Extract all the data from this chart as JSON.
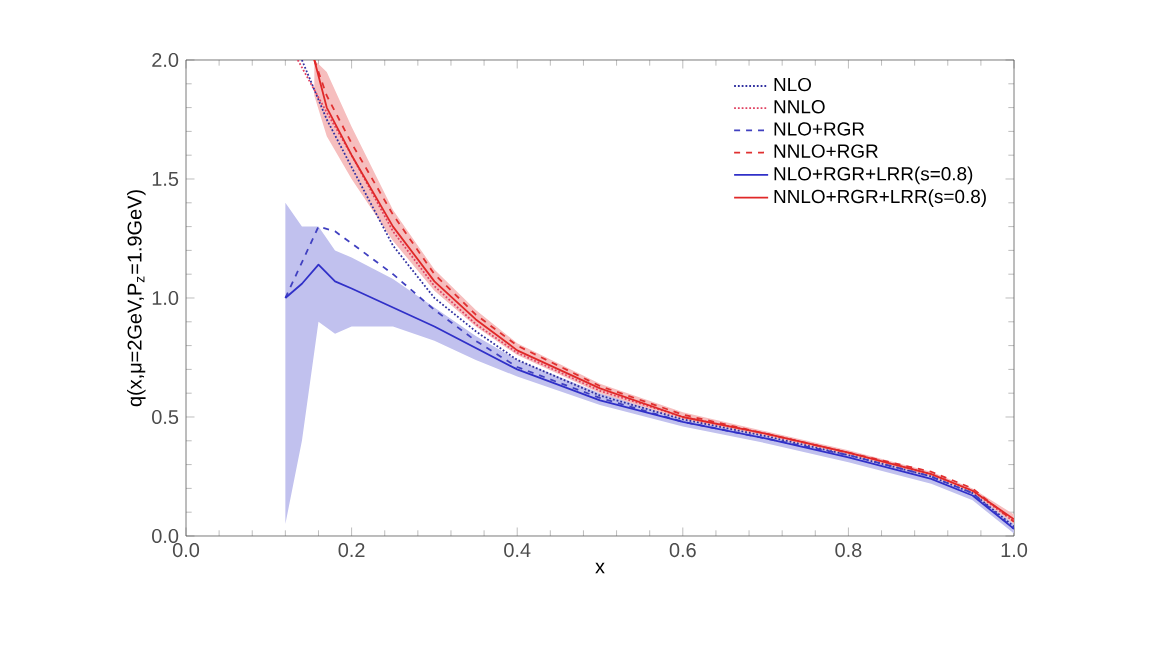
{
  "chart_data": {
    "type": "line",
    "xlabel": "x",
    "ylabel": "q(x,μ=2GeV,P$_{z}$=1.9GeV)",
    "xlim": [
      0.0,
      1.0
    ],
    "ylim": [
      0.0,
      2.0
    ],
    "xticks": [
      {
        "value": 0,
        "label": "0.0"
      },
      0.2,
      0.4,
      0.6,
      0.8,
      {
        "value": 1,
        "label": "1.0"
      }
    ],
    "yticks": [
      {
        "value": 0,
        "label": "0.0"
      },
      0.5,
      {
        "value": 1,
        "label": "1.0"
      },
      1.5,
      {
        "value": 2,
        "label": "2.0"
      }
    ],
    "legend": "top right",
    "marker": "none",
    "grid": false,
    "series": [
      {
        "name": "NLO",
        "color": "#3030a0",
        "line_style": "dotted",
        "x": [
          0.14,
          0.17,
          0.2,
          0.25,
          0.3,
          0.35,
          0.4,
          0.5,
          0.6,
          0.7,
          0.8,
          0.9,
          0.95,
          1.0
        ],
        "values": [
          2.0,
          1.75,
          1.55,
          1.22,
          1.0,
          0.86,
          0.74,
          0.59,
          0.49,
          0.42,
          0.34,
          0.25,
          0.18,
          0.04
        ]
      },
      {
        "name": "NNLO",
        "color": "#e04060",
        "line_style": "dotted",
        "x": [
          0.135,
          0.17,
          0.2,
          0.25,
          0.3,
          0.35,
          0.4,
          0.5,
          0.6,
          0.7,
          0.8,
          0.9,
          0.95,
          1.0
        ],
        "values": [
          2.0,
          1.78,
          1.6,
          1.28,
          1.05,
          0.89,
          0.77,
          0.61,
          0.5,
          0.43,
          0.35,
          0.26,
          0.19,
          0.06
        ]
      },
      {
        "name": "NLO+RGR",
        "color": "#4040c0",
        "line_style": "dashed",
        "x": [
          0.12,
          0.14,
          0.16,
          0.18,
          0.2,
          0.25,
          0.3,
          0.35,
          0.4,
          0.5,
          0.6,
          0.7,
          0.8,
          0.9,
          0.95,
          1.0
        ],
        "values": [
          1.0,
          1.15,
          1.3,
          1.28,
          1.23,
          1.1,
          0.95,
          0.82,
          0.71,
          0.58,
          0.48,
          0.41,
          0.34,
          0.25,
          0.18,
          0.03
        ]
      },
      {
        "name": "NNLO+RGR",
        "color": "#e03030",
        "line_style": "dashed",
        "x": [
          0.155,
          0.17,
          0.2,
          0.25,
          0.3,
          0.35,
          0.4,
          0.5,
          0.6,
          0.7,
          0.8,
          0.9,
          0.95,
          1.0
        ],
        "values": [
          2.0,
          1.85,
          1.65,
          1.35,
          1.1,
          0.93,
          0.8,
          0.63,
          0.51,
          0.43,
          0.35,
          0.27,
          0.2,
          0.06
        ]
      },
      {
        "name": "NLO+RGR+LRR(s=0.8)",
        "color": "#3030c8",
        "line_style": "solid",
        "x": [
          0.12,
          0.14,
          0.16,
          0.18,
          0.2,
          0.25,
          0.3,
          0.35,
          0.4,
          0.5,
          0.6,
          0.7,
          0.8,
          0.9,
          0.95,
          1.0
        ],
        "values": [
          1.0,
          1.06,
          1.14,
          1.07,
          1.04,
          0.96,
          0.88,
          0.79,
          0.7,
          0.57,
          0.48,
          0.41,
          0.33,
          0.24,
          0.17,
          0.03
        ],
        "lower": [
          0.05,
          0.4,
          0.9,
          0.85,
          0.88,
          0.88,
          0.82,
          0.74,
          0.67,
          0.55,
          0.46,
          0.39,
          0.31,
          0.22,
          0.15,
          0.01
        ],
        "upper": [
          1.4,
          1.3,
          1.3,
          1.2,
          1.17,
          1.08,
          0.96,
          0.84,
          0.74,
          0.6,
          0.5,
          0.43,
          0.35,
          0.26,
          0.19,
          0.05
        ]
      },
      {
        "name": "NNLO+RGR+LRR(s=0.8)",
        "color": "#e02828",
        "line_style": "solid",
        "x": [
          0.155,
          0.17,
          0.2,
          0.25,
          0.3,
          0.35,
          0.4,
          0.5,
          0.6,
          0.7,
          0.8,
          0.9,
          0.95,
          1.0
        ],
        "values": [
          2.0,
          1.8,
          1.6,
          1.3,
          1.07,
          0.91,
          0.78,
          0.62,
          0.5,
          0.43,
          0.35,
          0.26,
          0.19,
          0.07
        ],
        "lower": [
          1.85,
          1.68,
          1.5,
          1.24,
          1.03,
          0.88,
          0.76,
          0.6,
          0.49,
          0.42,
          0.34,
          0.25,
          0.18,
          0.05
        ],
        "upper": [
          2.0,
          1.95,
          1.72,
          1.37,
          1.12,
          0.95,
          0.81,
          0.64,
          0.52,
          0.44,
          0.36,
          0.27,
          0.2,
          0.09
        ]
      }
    ]
  }
}
